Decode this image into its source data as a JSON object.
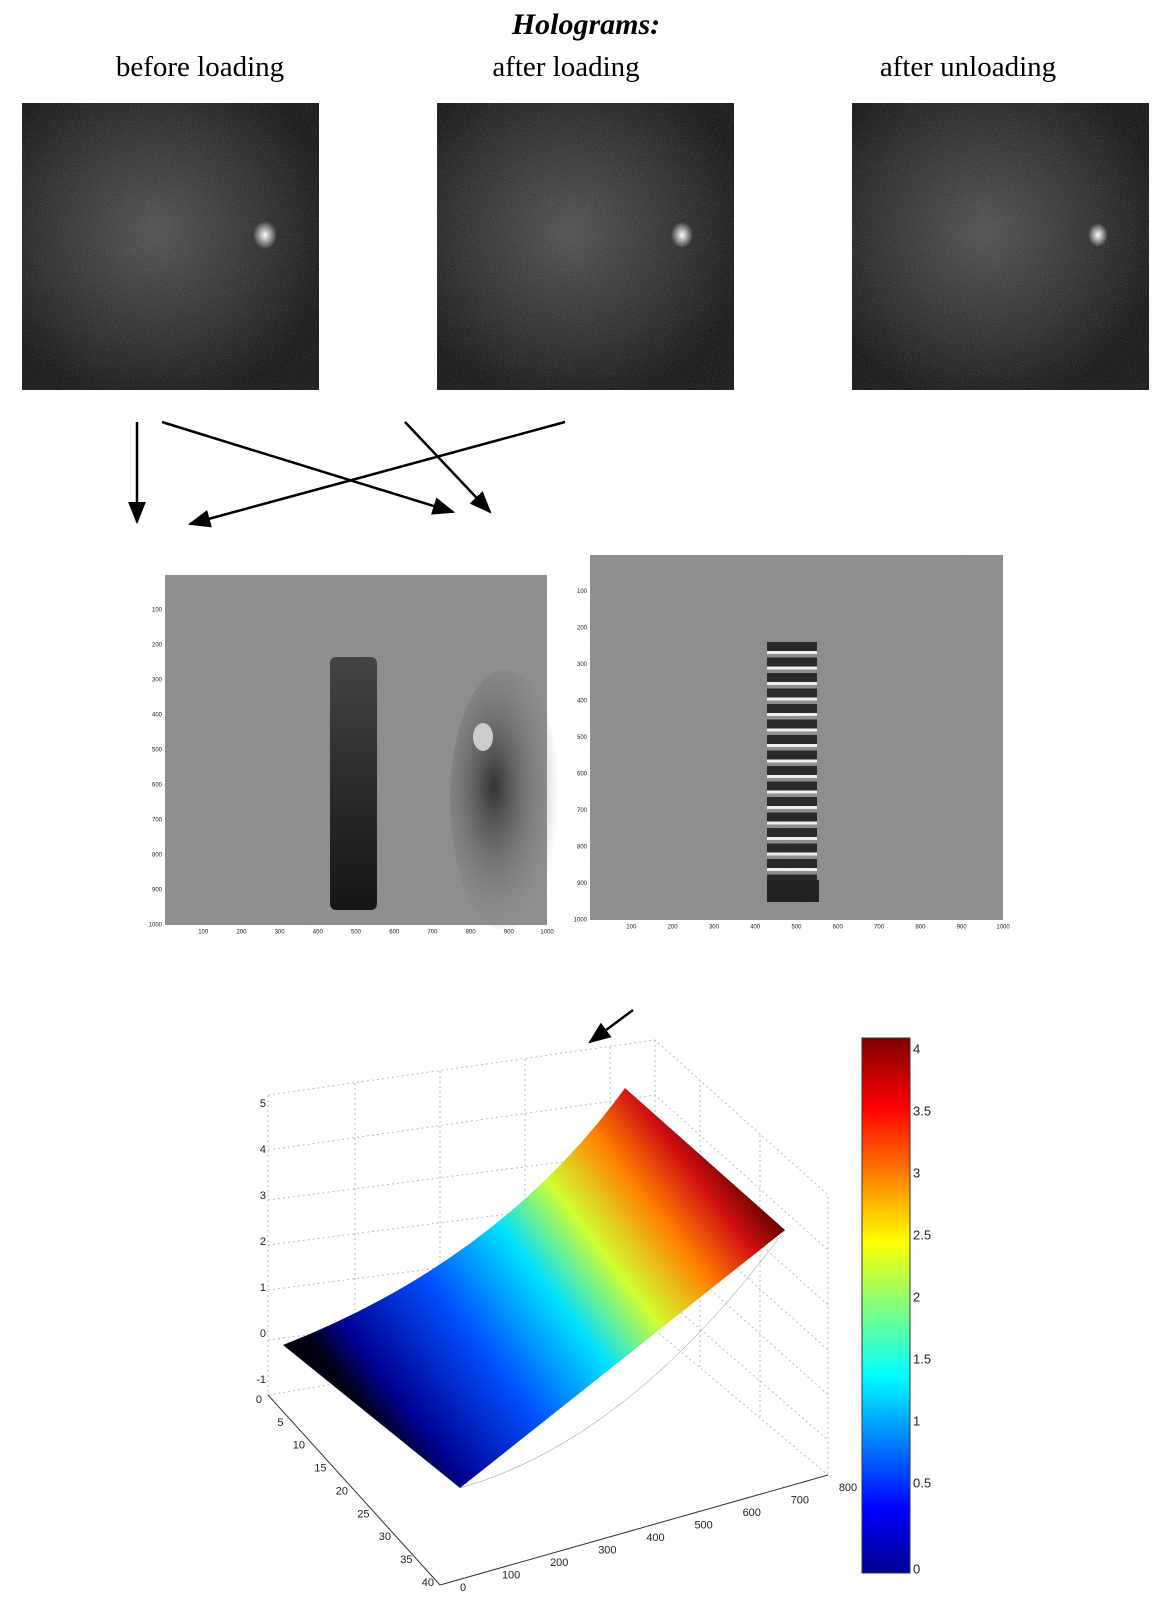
{
  "header": {
    "title": "Holograms:"
  },
  "holograms": [
    {
      "label": "before loading"
    },
    {
      "label": "after loading"
    },
    {
      "label": "after unloading"
    }
  ],
  "phase_maps": [
    {
      "xticks": [
        100,
        200,
        300,
        400,
        500,
        600,
        700,
        800,
        900,
        1000
      ],
      "yticks": [
        100,
        200,
        300,
        400,
        500,
        600,
        700,
        800,
        900,
        1000
      ]
    },
    {
      "xticks": [
        100,
        200,
        300,
        400,
        500,
        600,
        700,
        800,
        900,
        1000
      ],
      "yticks": [
        100,
        200,
        300,
        400,
        500,
        600,
        700,
        800,
        900,
        1000
      ]
    }
  ],
  "surface_plot": {
    "zticks": [
      -1,
      0,
      1,
      2,
      3,
      4,
      5
    ],
    "yticks": [
      0,
      5,
      10,
      15,
      20,
      25,
      30,
      35,
      40
    ],
    "xticks": [
      0,
      100,
      200,
      300,
      400,
      500,
      600,
      700,
      800
    ],
    "colorbar_ticks": [
      0,
      0.5,
      1,
      1.5,
      2,
      2.5,
      3,
      3.5,
      4
    ]
  }
}
